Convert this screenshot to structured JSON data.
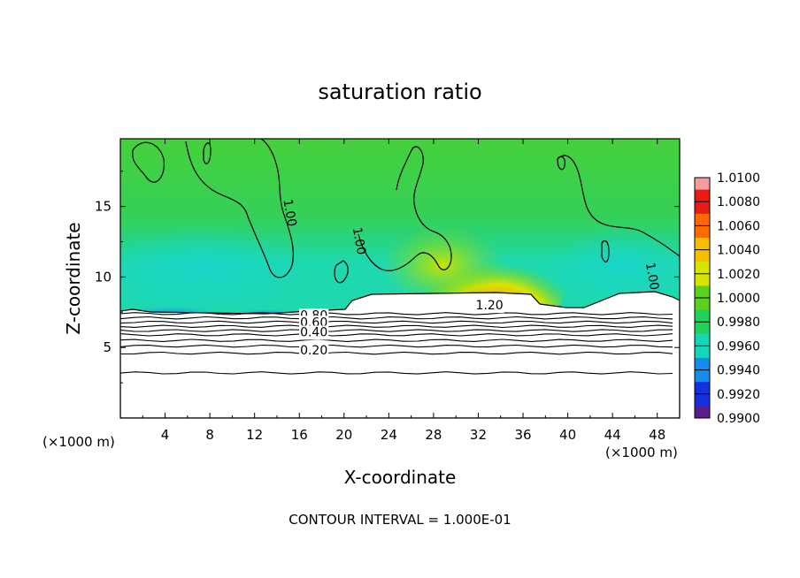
{
  "chart_data": {
    "type": "heatmap",
    "title": "saturation ratio",
    "xlabel": "X-coordinate",
    "ylabel": "Z-coordinate",
    "x_unit": "(×1000 m)",
    "x_unit_right": "(×1000 m)",
    "xlim": [
      0,
      50
    ],
    "ylim": [
      0,
      19.8
    ],
    "x_ticks": [
      4,
      8,
      12,
      16,
      20,
      24,
      28,
      32,
      36,
      40,
      44,
      48
    ],
    "y_ticks": [
      5,
      10,
      15
    ],
    "colorbar": {
      "labels": [
        "1.0100",
        "1.0080",
        "1.0060",
        "1.0040",
        "1.0020",
        "1.0000",
        "0.9980",
        "0.9960",
        "0.9940",
        "0.9920",
        "0.9900"
      ],
      "values": [
        1.01,
        1.008,
        1.006,
        1.004,
        1.002,
        1.0,
        0.998,
        0.996,
        0.994,
        0.992,
        0.99
      ],
      "colors": [
        "#f49c9c",
        "#e81a14",
        "#ff6a00",
        "#f6c000",
        "#d6e600",
        "#5ad21e",
        "#20d25a",
        "#14d6b8",
        "#148cf0",
        "#1432dc",
        "#5a1e8c",
        "#7a2a9a"
      ]
    },
    "contour_labels": [
      {
        "text": "1.00",
        "x": 14.8,
        "z": 14.5,
        "rotate": 80
      },
      {
        "text": "1.00",
        "x": 21.0,
        "z": 12.5,
        "rotate": 80
      },
      {
        "text": "1.00",
        "x": 47.2,
        "z": 10.0,
        "rotate": 80
      },
      {
        "text": "1.20",
        "x": 33.0,
        "z": 7.7,
        "rotate": 0
      },
      {
        "text": "0.80",
        "x": 17.3,
        "z": 7.0,
        "rotate": 0
      },
      {
        "text": "0.60",
        "x": 17.3,
        "z": 6.5,
        "rotate": 0
      },
      {
        "text": "0.40",
        "x": 17.3,
        "z": 5.8,
        "rotate": 0
      },
      {
        "text": "0.20",
        "x": 17.3,
        "z": 4.5,
        "rotate": 0
      }
    ],
    "contour_levels_z": [
      7.4,
      7.1,
      6.8,
      6.5,
      6.2,
      5.9,
      5.5,
      5.1,
      4.6,
      3.2
    ],
    "grid": false,
    "legend": "right"
  },
  "footer": {
    "contour_interval": "CONTOUR INTERVAL = 1.000E-01"
  }
}
